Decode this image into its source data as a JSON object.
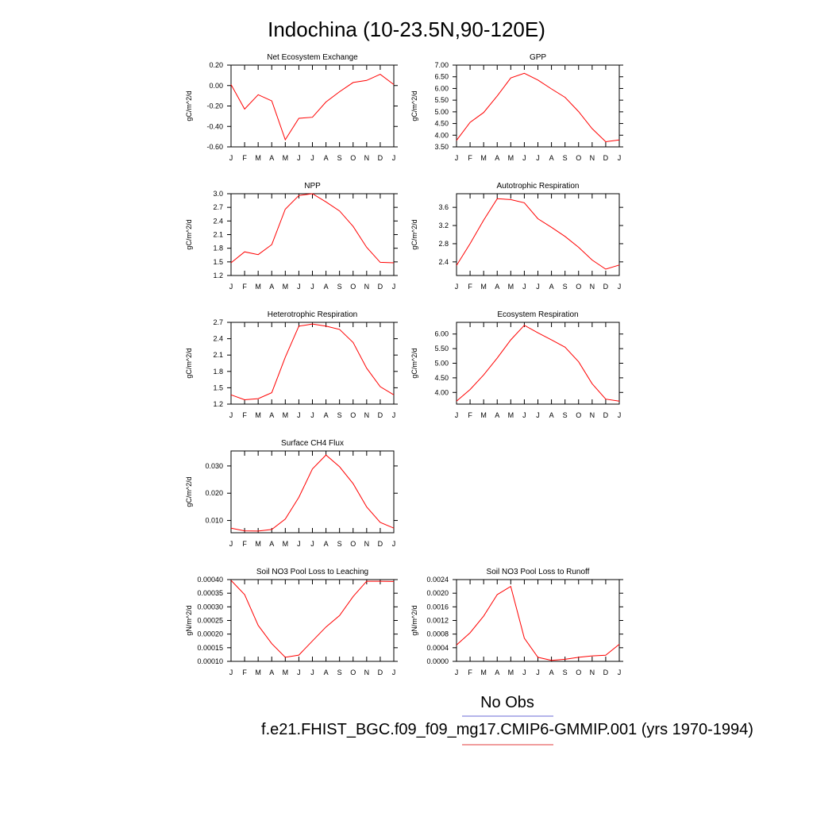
{
  "figure": {
    "title": "Indochina (10-23.5N,90-120E)"
  },
  "legend": {
    "entries": [
      {
        "label": "No Obs",
        "color": "#6b6bd6"
      },
      {
        "label": "f.e21.FHIST_BGC.f09_f09_mg17.CMIP6-GMMIP.001 (yrs 1970-1994)",
        "color": "#e33b3b"
      }
    ]
  },
  "chart_data": [
    {
      "type": "line",
      "title": "Net Ecosystem Exchange",
      "ylabel": "gC/m^2/d",
      "x": [
        "J",
        "F",
        "M",
        "A",
        "M",
        "J",
        "J",
        "A",
        "S",
        "O",
        "N",
        "D",
        "J"
      ],
      "ylim": [
        -0.6,
        0.2
      ],
      "yticks": [
        0.2,
        0.0,
        -0.2,
        -0.4,
        -0.6
      ],
      "ytick_labels": [
        "0.20",
        "0.00",
        "-0.20",
        "-0.40",
        "-0.60"
      ],
      "series": [
        {
          "color": "#ff0000",
          "values": [
            0.01,
            -0.23,
            -0.09,
            -0.15,
            -0.53,
            -0.32,
            -0.31,
            -0.16,
            -0.06,
            0.03,
            0.05,
            0.11,
            0.01
          ]
        }
      ]
    },
    {
      "type": "line",
      "title": "GPP",
      "ylabel": "gC/m^2/d",
      "x": [
        "J",
        "F",
        "M",
        "A",
        "M",
        "J",
        "J",
        "A",
        "S",
        "O",
        "N",
        "D",
        "J"
      ],
      "ylim": [
        3.5,
        7.0
      ],
      "yticks": [
        7.0,
        6.5,
        6.0,
        5.5,
        5.0,
        4.5,
        4.0,
        3.5
      ],
      "ytick_labels": [
        "7.00",
        "6.50",
        "6.00",
        "5.50",
        "5.00",
        "4.50",
        "4.00",
        "3.50"
      ],
      "series": [
        {
          "color": "#ff0000",
          "values": [
            3.78,
            4.55,
            4.97,
            5.68,
            6.45,
            6.65,
            6.36,
            5.98,
            5.62,
            5.01,
            4.28,
            3.72,
            3.8
          ]
        }
      ]
    },
    {
      "type": "line",
      "title": "NPP",
      "ylabel": "gC/m^2/d",
      "x": [
        "J",
        "F",
        "M",
        "A",
        "M",
        "J",
        "J",
        "A",
        "S",
        "O",
        "N",
        "D",
        "J"
      ],
      "ylim": [
        1.2,
        3.0
      ],
      "yticks": [
        3.0,
        2.7,
        2.4,
        2.1,
        1.8,
        1.5,
        1.2
      ],
      "ytick_labels": [
        "3.0",
        "2.7",
        "2.4",
        "2.1",
        "1.8",
        "1.5",
        "1.2"
      ],
      "series": [
        {
          "color": "#ff0000",
          "values": [
            1.48,
            1.72,
            1.66,
            1.88,
            2.66,
            2.96,
            3.0,
            2.82,
            2.62,
            2.28,
            1.82,
            1.49,
            1.48
          ]
        }
      ]
    },
    {
      "type": "line",
      "title": "Autotrophic Respiration",
      "ylabel": "gC/m^2/d",
      "x": [
        "J",
        "F",
        "M",
        "A",
        "M",
        "J",
        "J",
        "A",
        "S",
        "O",
        "N",
        "D",
        "J"
      ],
      "ylim": [
        2.1,
        3.9
      ],
      "yticks": [
        3.6,
        3.2,
        2.8,
        2.4
      ],
      "ytick_labels": [
        "3.6",
        "3.2",
        "2.8",
        "2.4"
      ],
      "series": [
        {
          "color": "#ff0000",
          "values": [
            2.32,
            2.8,
            3.32,
            3.79,
            3.77,
            3.7,
            3.35,
            3.16,
            2.96,
            2.72,
            2.44,
            2.24,
            2.33
          ]
        }
      ]
    },
    {
      "type": "line",
      "title": "Heterotrophic Respiration",
      "ylabel": "gC/m^2/d",
      "x": [
        "J",
        "F",
        "M",
        "A",
        "M",
        "J",
        "J",
        "A",
        "S",
        "O",
        "N",
        "D",
        "J"
      ],
      "ylim": [
        1.2,
        2.7
      ],
      "yticks": [
        2.7,
        2.4,
        2.1,
        1.8,
        1.5,
        1.2
      ],
      "ytick_labels": [
        "2.7",
        "2.4",
        "2.1",
        "1.8",
        "1.5",
        "1.2"
      ],
      "series": [
        {
          "color": "#ff0000",
          "values": [
            1.37,
            1.28,
            1.3,
            1.41,
            2.06,
            2.63,
            2.67,
            2.63,
            2.57,
            2.33,
            1.86,
            1.52,
            1.37
          ]
        }
      ]
    },
    {
      "type": "line",
      "title": "Ecosystem Respiration",
      "ylabel": "gC/m^2/d",
      "x": [
        "J",
        "F",
        "M",
        "A",
        "M",
        "J",
        "J",
        "A",
        "S",
        "O",
        "N",
        "D",
        "J"
      ],
      "ylim": [
        3.6,
        6.4
      ],
      "yticks": [
        6.0,
        5.5,
        5.0,
        4.5,
        4.0
      ],
      "ytick_labels": [
        "6.00",
        "5.50",
        "5.00",
        "4.50",
        "4.00"
      ],
      "series": [
        {
          "color": "#ff0000",
          "values": [
            3.7,
            4.1,
            4.6,
            5.18,
            5.8,
            6.3,
            6.04,
            5.8,
            5.55,
            5.05,
            4.3,
            3.77,
            3.7
          ]
        }
      ]
    },
    {
      "type": "line",
      "title": "Surface CH4 Flux",
      "ylabel": "gC/m^2/d",
      "x": [
        "J",
        "F",
        "M",
        "A",
        "M",
        "J",
        "J",
        "A",
        "S",
        "O",
        "N",
        "D",
        "J"
      ],
      "ylim": [
        0.0055,
        0.0355
      ],
      "yticks": [
        0.03,
        0.02,
        0.01
      ],
      "ytick_labels": [
        "0.030",
        "0.020",
        "0.010"
      ],
      "series": [
        {
          "color": "#ff0000",
          "values": [
            0.0072,
            0.0062,
            0.0061,
            0.0067,
            0.0105,
            0.0185,
            0.0289,
            0.034,
            0.0297,
            0.0235,
            0.015,
            0.0093,
            0.0072
          ]
        }
      ]
    },
    {
      "type": "line",
      "title": "Soil NO3 Pool Loss to Leaching",
      "ylabel": "gN/m^2/d",
      "x": [
        "J",
        "F",
        "M",
        "A",
        "M",
        "J",
        "J",
        "A",
        "S",
        "O",
        "N",
        "D",
        "J"
      ],
      "ylim": [
        0.0001,
        0.0004
      ],
      "yticks": [
        0.0004,
        0.00035,
        0.0003,
        0.00025,
        0.0002,
        0.00015,
        0.0001
      ],
      "ytick_labels": [
        "0.00040",
        "0.00035",
        "0.00030",
        "0.00025",
        "0.00020",
        "0.00015",
        "0.00010"
      ],
      "series": [
        {
          "color": "#ff0000",
          "values": [
            0.000397,
            0.000345,
            0.000232,
            0.000165,
            0.000115,
            0.000123,
            0.000175,
            0.000226,
            0.000268,
            0.000338,
            0.000394,
            0.000394,
            0.000393
          ]
        }
      ]
    },
    {
      "type": "line",
      "title": "Soil NO3 Pool Loss to Runoff",
      "ylabel": "gN/m^2/d",
      "x": [
        "J",
        "F",
        "M",
        "A",
        "M",
        "J",
        "J",
        "A",
        "S",
        "O",
        "N",
        "D",
        "J"
      ],
      "ylim": [
        0.0,
        0.0024
      ],
      "yticks": [
        0.0024,
        0.002,
        0.0016,
        0.0012,
        0.0008,
        0.0004,
        0.0
      ],
      "ytick_labels": [
        "0.0024",
        "0.0020",
        "0.0016",
        "0.0012",
        "0.0008",
        "0.0004",
        "0.0000"
      ],
      "series": [
        {
          "color": "#ff0000",
          "values": [
            0.00048,
            0.00084,
            0.00133,
            0.00196,
            0.0022,
            0.00068,
            0.00012,
            3e-05,
            6e-05,
            0.00012,
            0.00016,
            0.00018,
            0.0005
          ]
        }
      ]
    }
  ]
}
